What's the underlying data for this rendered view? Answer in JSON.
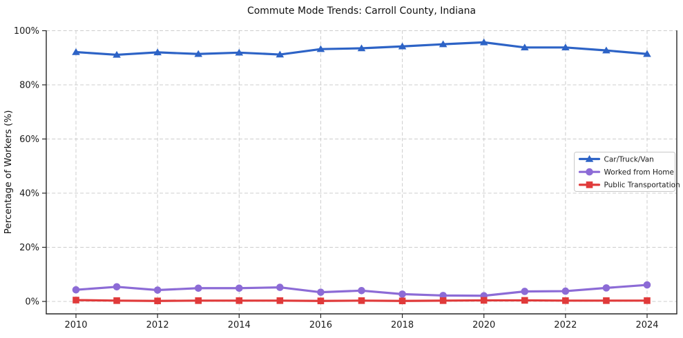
{
  "figure": {
    "title": "Commute Mode Trends: Carroll County, Indiana"
  },
  "chart_data": {
    "type": "line",
    "title": "Commute Mode Trends: Carroll County, Indiana",
    "xlabel": "",
    "ylabel": "Percentage of Workers (%)",
    "x": [
      2010,
      2011,
      2012,
      2013,
      2014,
      2015,
      2016,
      2017,
      2018,
      2019,
      2020,
      2021,
      2022,
      2023,
      2024
    ],
    "xticks": [
      2010,
      2012,
      2014,
      2016,
      2018,
      2020,
      2022,
      2024
    ],
    "xtick_labels": [
      "2010",
      "2012",
      "2014",
      "2016",
      "2018",
      "2020",
      "2022",
      "2024"
    ],
    "yticks": [
      0,
      20,
      40,
      60,
      80,
      100
    ],
    "ytick_labels": [
      "0%",
      "20%",
      "40%",
      "60%",
      "80%",
      "100%"
    ],
    "ylim": [
      -4.7,
      100
    ],
    "xlim": [
      2009.3,
      2024.7
    ],
    "grid": true,
    "grid_style": "dashed",
    "legend_position": "middle-right",
    "series": [
      {
        "name": "Car/Truck/Van",
        "marker": "triangle",
        "color": "#2d63c6",
        "values": [
          92.1,
          91.1,
          92.0,
          91.4,
          91.9,
          91.2,
          93.2,
          93.5,
          94.2,
          95.0,
          95.7,
          93.8,
          93.8,
          92.7,
          91.4
        ]
      },
      {
        "name": "Worked from Home",
        "marker": "circle",
        "color": "#8c6bd6",
        "values": [
          4.3,
          5.4,
          4.2,
          4.9,
          4.9,
          5.2,
          3.4,
          4.0,
          2.7,
          2.2,
          2.1,
          3.7,
          3.8,
          5.0,
          6.1
        ]
      },
      {
        "name": "Public Transportation",
        "marker": "square",
        "color": "#e03a3a",
        "values": [
          0.5,
          0.3,
          0.2,
          0.3,
          0.3,
          0.3,
          0.2,
          0.3,
          0.2,
          0.3,
          0.4,
          0.4,
          0.3,
          0.3,
          0.3
        ]
      }
    ],
    "style": {
      "grid_color": "#cccccc",
      "spine_color": "#262626",
      "background": "#ffffff",
      "legend_border": "#c8c8c8"
    }
  }
}
